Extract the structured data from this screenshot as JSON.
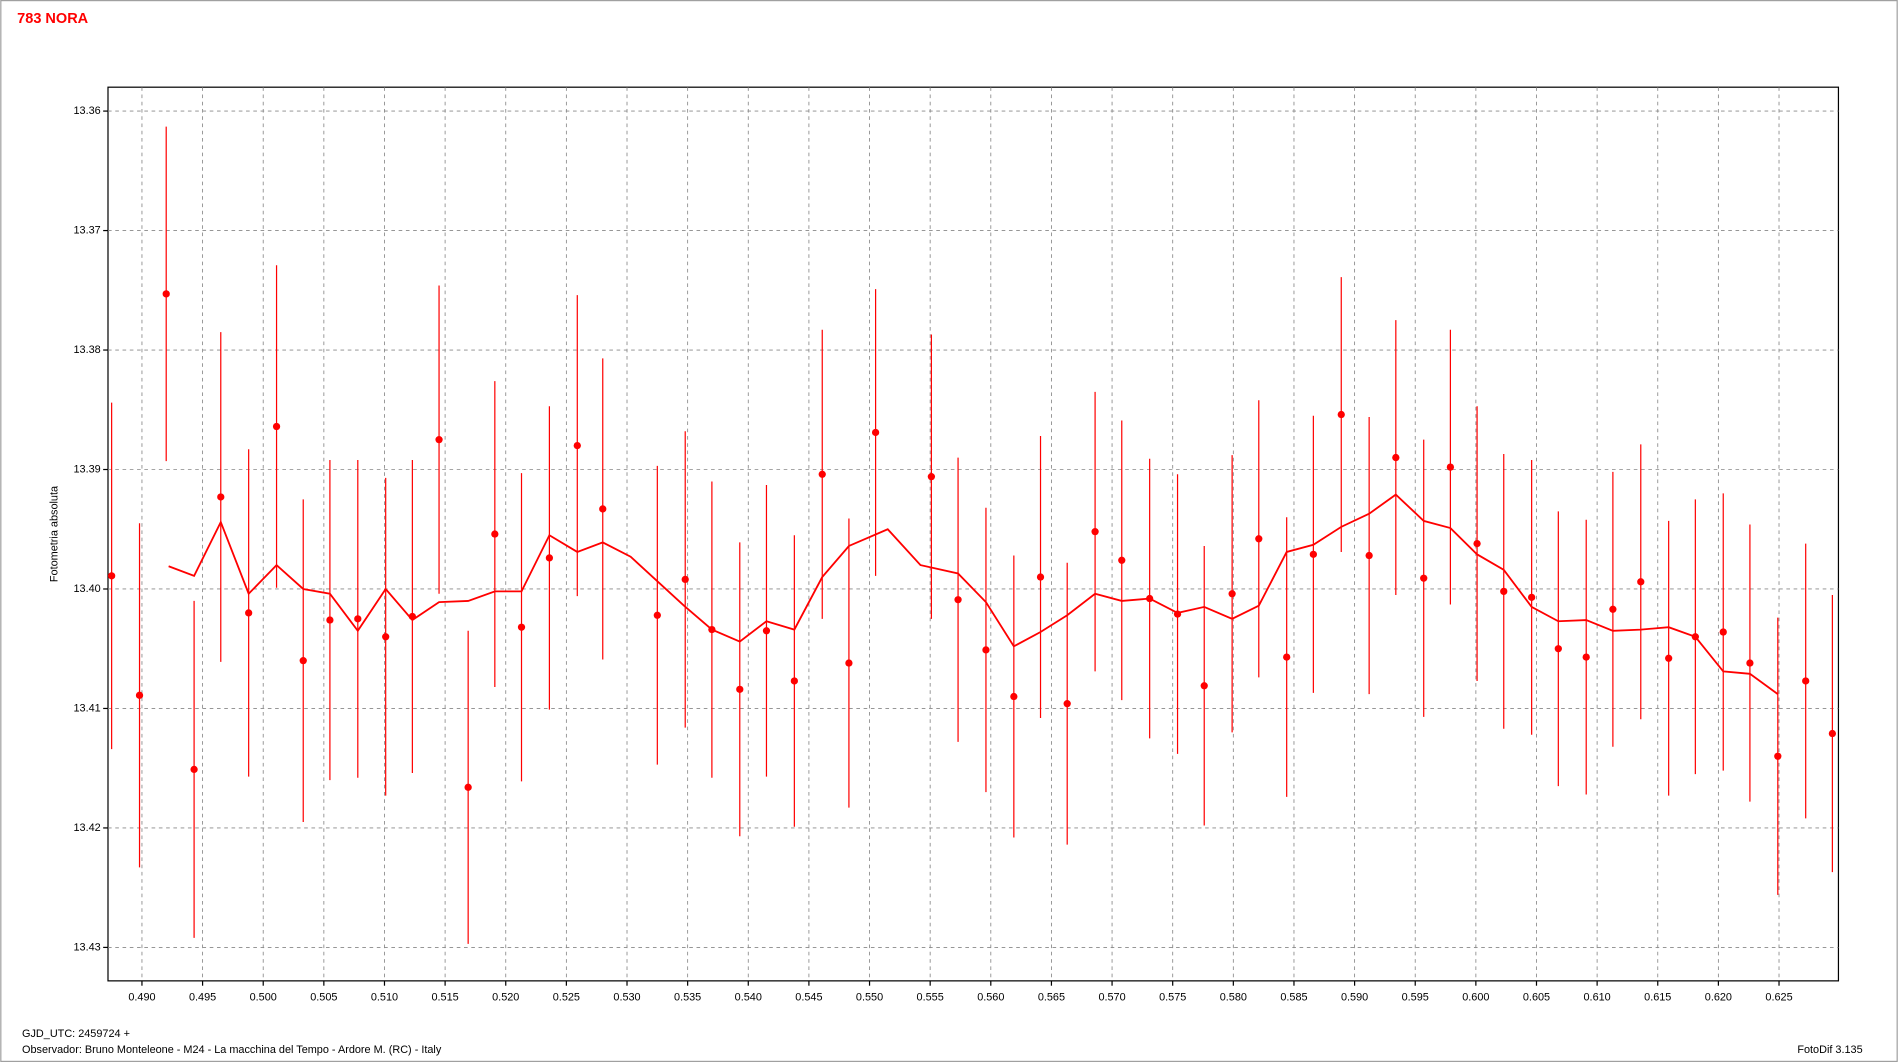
{
  "chart_data": {
    "type": "scatter",
    "title": "783 NORA",
    "ylabel": "Fotometria absoluta",
    "xlabel": "GJD_UTC: 2459724 +",
    "observer": "Observador: Bruno Monteleone - M24 - La macchina del Tempo - Ardore M. (RC) - Italy",
    "software": "FotoDif 3.135",
    "grid": true,
    "xlim": [
      0.4872,
      0.6299
    ],
    "ylim": [
      13.4328,
      13.358
    ],
    "xticks": [
      {
        "value": 0.49,
        "label": "0.490"
      },
      {
        "value": 0.495,
        "label": "0.495"
      },
      {
        "value": 0.5,
        "label": "0.500"
      },
      {
        "value": 0.505,
        "label": "0.505"
      },
      {
        "value": 0.51,
        "label": "0.510"
      },
      {
        "value": 0.515,
        "label": "0.515"
      },
      {
        "value": 0.52,
        "label": "0.520"
      },
      {
        "value": 0.525,
        "label": "0.525"
      },
      {
        "value": 0.53,
        "label": "0.530"
      },
      {
        "value": 0.535,
        "label": "0.535"
      },
      {
        "value": 0.54,
        "label": "0.540"
      },
      {
        "value": 0.545,
        "label": "0.545"
      },
      {
        "value": 0.55,
        "label": "0.550"
      },
      {
        "value": 0.555,
        "label": "0.555"
      },
      {
        "value": 0.56,
        "label": "0.560"
      },
      {
        "value": 0.565,
        "label": "0.565"
      },
      {
        "value": 0.57,
        "label": "0.570"
      },
      {
        "value": 0.575,
        "label": "0.575"
      },
      {
        "value": 0.58,
        "label": "0.580"
      },
      {
        "value": 0.585,
        "label": "0.585"
      },
      {
        "value": 0.59,
        "label": "0.590"
      },
      {
        "value": 0.595,
        "label": "0.595"
      },
      {
        "value": 0.6,
        "label": "0.600"
      },
      {
        "value": 0.605,
        "label": "0.605"
      },
      {
        "value": 0.61,
        "label": "0.610"
      },
      {
        "value": 0.615,
        "label": "0.615"
      },
      {
        "value": 0.62,
        "label": "0.620"
      },
      {
        "value": 0.625,
        "label": "0.625"
      }
    ],
    "yticks": [
      13.36,
      13.37,
      13.38,
      13.39,
      {
        "value": 13.4,
        "label": "13.40"
      },
      13.41,
      13.42,
      13.43
    ],
    "series": [
      {
        "color": "#ff0000",
        "style": "points",
        "x": [
          0.4875,
          0.4898,
          0.492,
          0.4943,
          0.4965,
          0.4988,
          0.5011,
          0.5033,
          0.5055,
          0.5078,
          0.5101,
          0.5123,
          0.5145,
          0.5169,
          0.5191,
          0.5213,
          0.5236,
          0.5259,
          0.528,
          0.5325,
          0.5348,
          0.537,
          0.5393,
          0.5415,
          0.5438,
          0.5461,
          0.5483,
          0.5505,
          0.5551,
          0.5573,
          0.5596,
          0.5619,
          0.5641,
          0.5663,
          0.5686,
          0.5708,
          0.5731,
          0.5754,
          0.5776,
          0.5799,
          0.5821,
          0.5844,
          0.5866,
          0.5889,
          0.5912,
          0.5934,
          0.5957,
          0.5979,
          0.6001,
          0.6023,
          0.6046,
          0.6068,
          0.6091,
          0.6113,
          0.6136,
          0.6159,
          0.6181,
          0.6204,
          0.6226,
          0.6249,
          0.6272,
          0.6294
        ],
        "values": [
          13.3989,
          13.4089,
          13.3753,
          13.4151,
          13.3923,
          13.402,
          13.3864,
          13.406,
          13.4026,
          13.4025,
          13.404,
          13.4023,
          13.3875,
          13.4166,
          13.3954,
          13.4032,
          13.3974,
          13.388,
          13.3933,
          13.4022,
          13.3992,
          13.4034,
          13.4084,
          13.4035,
          13.4077,
          13.3904,
          13.4062,
          13.3869,
          13.3906,
          13.4009,
          13.4051,
          13.409,
          13.399,
          13.4096,
          13.3952,
          13.3976,
          13.4008,
          13.4021,
          13.4081,
          13.4004,
          13.3958,
          13.4057,
          13.3971,
          13.3854,
          13.3972,
          13.389,
          13.3991,
          13.3898,
          13.3962,
          13.4002,
          13.4007,
          13.405,
          13.4057,
          13.4017,
          13.3994,
          13.4058,
          13.404,
          13.4036,
          13.4062,
          13.414,
          13.4077,
          13.4121
        ],
        "errors": [
          0.0145,
          0.0144,
          0.014,
          0.0141,
          0.0138,
          0.0137,
          0.0135,
          0.0135,
          0.0134,
          0.0133,
          0.0133,
          0.0131,
          0.0129,
          0.0131,
          0.0128,
          0.0129,
          0.0127,
          0.0126,
          0.0126,
          0.0125,
          0.0124,
          0.0124,
          0.0123,
          0.0122,
          0.0122,
          0.0121,
          0.0121,
          0.012,
          0.0119,
          0.0119,
          0.0119,
          0.0118,
          0.0118,
          0.0118,
          0.0117,
          0.0117,
          0.0117,
          0.0117,
          0.0117,
          0.0116,
          0.0116,
          0.0117,
          0.0116,
          0.0115,
          0.0116,
          0.0115,
          0.0116,
          0.0115,
          0.0115,
          0.0115,
          0.0115,
          0.0115,
          0.0115,
          0.0115,
          0.0115,
          0.0115,
          0.0115,
          0.0116,
          0.0116,
          0.0116,
          0.0115,
          0.0116
        ]
      },
      {
        "color": "#ff0000",
        "style": "line",
        "x": [
          0.4922,
          0.4943,
          0.4965,
          0.4988,
          0.5011,
          0.5033,
          0.5055,
          0.5078,
          0.5101,
          0.5123,
          0.5145,
          0.5169,
          0.5191,
          0.5213,
          0.5236,
          0.5259,
          0.528,
          0.5303,
          0.5347,
          0.537,
          0.5393,
          0.5415,
          0.5438,
          0.5461,
          0.5483,
          0.5515,
          0.5542,
          0.5573,
          0.5596,
          0.5619,
          0.5641,
          0.5663,
          0.5686,
          0.5708,
          0.5731,
          0.5754,
          0.5776,
          0.5799,
          0.5821,
          0.5844,
          0.5866,
          0.5889,
          0.5912,
          0.5934,
          0.5957,
          0.5979,
          0.6001,
          0.6023,
          0.6046,
          0.6068,
          0.6091,
          0.6113,
          0.6136,
          0.6159,
          0.6181,
          0.6204,
          0.6226,
          0.6249
        ],
        "values": [
          13.3981,
          13.3989,
          13.3944,
          13.4004,
          13.398,
          13.4,
          13.4004,
          13.4035,
          13.4,
          13.4026,
          13.4011,
          13.401,
          13.4002,
          13.4002,
          13.3955,
          13.3969,
          13.3961,
          13.3973,
          13.4014,
          13.4034,
          13.4044,
          13.4027,
          13.4034,
          13.399,
          13.3964,
          13.395,
          13.398,
          13.3987,
          13.4011,
          13.4048,
          13.4036,
          13.4022,
          13.4004,
          13.401,
          13.4008,
          13.402,
          13.4015,
          13.4025,
          13.4014,
          13.3969,
          13.3963,
          13.3948,
          13.3937,
          13.3921,
          13.3943,
          13.3949,
          13.3971,
          13.3984,
          13.4015,
          13.4027,
          13.4026,
          13.4035,
          13.4034,
          13.4032,
          13.404,
          13.4069,
          13.4071,
          13.4088
        ]
      }
    ]
  }
}
